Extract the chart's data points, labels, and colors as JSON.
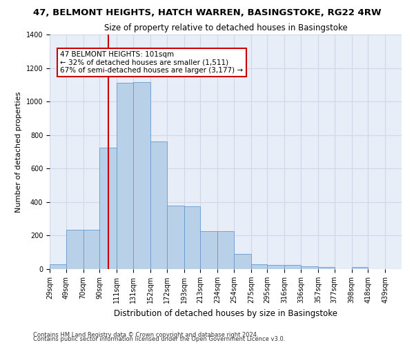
{
  "title": "47, BELMONT HEIGHTS, HATCH WARREN, BASINGSTOKE, RG22 4RW",
  "subtitle": "Size of property relative to detached houses in Basingstoke",
  "xlabel": "Distribution of detached houses by size in Basingstoke",
  "ylabel": "Number of detached properties",
  "footnote1": "Contains HM Land Registry data © Crown copyright and database right 2024.",
  "footnote2": "Contains public sector information licensed under the Open Government Licence v3.0.",
  "bar_left_edges": [
    29,
    49,
    70,
    90,
    111,
    131,
    152,
    172,
    193,
    213,
    234,
    254,
    275,
    295,
    316,
    336,
    357,
    377,
    398,
    418,
    439
  ],
  "bar_widths": [
    20,
    21,
    20,
    21,
    20,
    21,
    20,
    21,
    20,
    21,
    20,
    21,
    20,
    21,
    20,
    21,
    20,
    21,
    20,
    21,
    20
  ],
  "bar_heights": [
    30,
    235,
    235,
    725,
    1110,
    1115,
    760,
    380,
    375,
    225,
    225,
    90,
    30,
    25,
    25,
    18,
    13,
    0,
    12,
    0,
    0
  ],
  "bar_color": "#b8d0e8",
  "bar_edge_color": "#6699cc",
  "grid_color": "#d0d8e8",
  "bg_color": "#e8eef8",
  "red_line_x": 101,
  "annotation_text": "47 BELMONT HEIGHTS: 101sqm\n← 32% of detached houses are smaller (1,511)\n67% of semi-detached houses are larger (3,177) →",
  "annotation_box_color": "#ffffff",
  "annotation_text_color": "#000000",
  "annotation_border_color": "#cc0000",
  "red_line_color": "#cc0000",
  "ylim": [
    0,
    1400
  ],
  "yticks": [
    0,
    200,
    400,
    600,
    800,
    1000,
    1200,
    1400
  ],
  "title_fontsize": 9.5,
  "subtitle_fontsize": 8.5,
  "ylabel_fontsize": 8,
  "xlabel_fontsize": 8.5,
  "tick_fontsize": 7,
  "annotation_fontsize": 7.5,
  "footnote_fontsize": 6
}
